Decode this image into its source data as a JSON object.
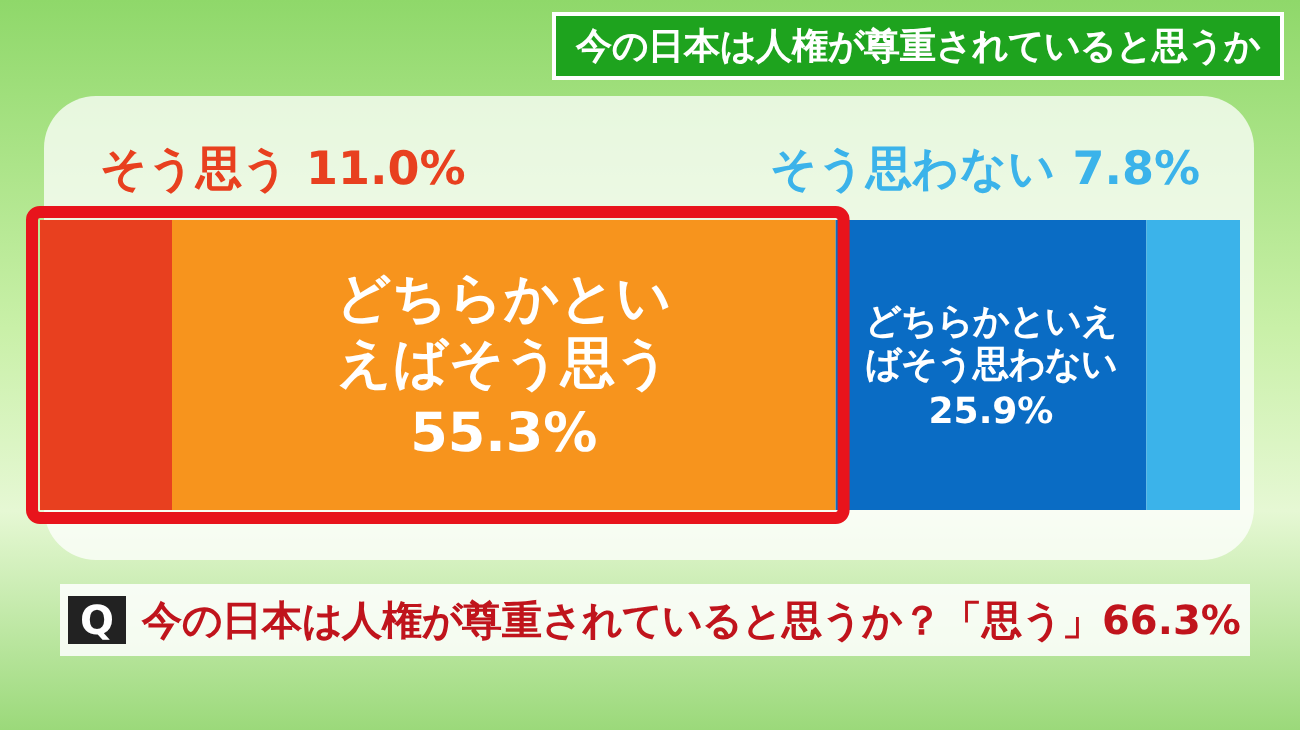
{
  "chart_data": {
    "type": "bar",
    "orientation": "horizontal",
    "stacked": true,
    "title": "今の日本は人権が尊重されていると思うか",
    "categories": [
      null
    ],
    "series": [
      {
        "name": "そう思う",
        "color": "#e8401f",
        "values": [
          11.0
        ],
        "value_labels": [
          "11.0%"
        ]
      },
      {
        "name": "どちらかといえばそう思う",
        "color": "#f7941d",
        "values": [
          55.3
        ],
        "value_labels": [
          "55.3%"
        ]
      },
      {
        "name": "どちらかといえばそう思わない",
        "color": "#0a6cc4",
        "values": [
          25.9
        ],
        "value_labels": [
          "25.9%"
        ]
      },
      {
        "name": "そう思わない",
        "color": "#3bb3ea",
        "values": [
          7.8
        ],
        "value_labels": [
          "7.8%"
        ]
      }
    ],
    "annotations": [
      "Q",
      "今の日本は人権が尊重されていると思うか？「思う」66.3%"
    ]
  }
}
